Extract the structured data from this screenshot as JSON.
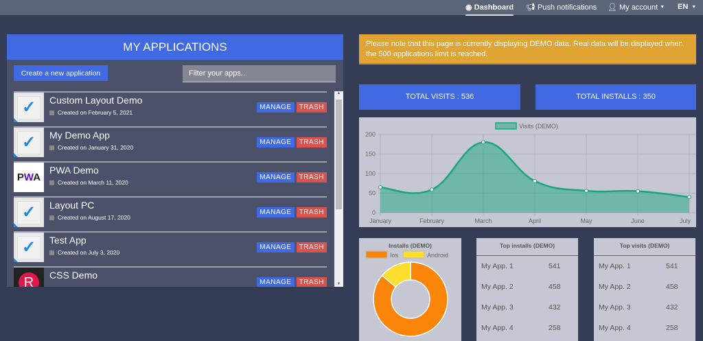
{
  "nav": {
    "dashboard": "Dashboard",
    "push": "Push notifications",
    "account": "My account",
    "lang": "EN"
  },
  "panel": {
    "title": "MY APPLICATIONS",
    "create": "Create a new application",
    "filter_placeholder": "Filter your apps...",
    "manage": "MANAGE",
    "trash": "TRASH",
    "apps": [
      {
        "name": "Custom Layout Demo",
        "date": "Created on February 5, 2021",
        "icon": "check"
      },
      {
        "name": "My Demo App",
        "date": "Created on January 31, 2020",
        "icon": "check"
      },
      {
        "name": "PWA Demo",
        "date": "Created on March 11, 2020",
        "icon": "pwa"
      },
      {
        "name": "Layout PC",
        "date": "Created on August 17, 2020",
        "icon": "check"
      },
      {
        "name": "Test App",
        "date": "Created on July 3, 2020",
        "icon": "check"
      },
      {
        "name": "CSS Demo",
        "date": "",
        "icon": "r-logo"
      }
    ],
    "pwa_logo": "PWA",
    "r_logo": "R"
  },
  "notice": "Please note that this page is currently displaying DEMO data. Real data will be displayed when the 500 applications limit is reached.",
  "stats": {
    "visits": "TOTAL VISITS : 536",
    "installs": "TOTAL INSTALLS : 350"
  },
  "colors": {
    "accent": "#4169e1",
    "trash": "#d9534f",
    "notice": "#e0a434",
    "line": "#1aa57f",
    "ios": "#fb8509",
    "android": "#fddd2e"
  },
  "chart_data": [
    {
      "type": "area",
      "legend": "Visits (DEMO)",
      "categories": [
        "January",
        "February",
        "March",
        "April",
        "May",
        "June",
        "July"
      ],
      "values": [
        65,
        59,
        180,
        81,
        56,
        55,
        40
      ],
      "ylim": [
        0,
        200
      ],
      "yticks": [
        "0",
        "50",
        "100",
        "150",
        "200"
      ],
      "grid": true,
      "legend_position": "top"
    },
    {
      "type": "pie",
      "title": "Installs (DEMO)",
      "labels": [
        "Ios",
        "Android"
      ],
      "values": [
        86,
        14
      ],
      "legend_position": "top"
    }
  ],
  "top_installs": {
    "title": "Top installs (DEMO)",
    "rows": [
      [
        "My App. 1",
        "541"
      ],
      [
        "My App. 2",
        "458"
      ],
      [
        "My App. 3",
        "432"
      ],
      [
        "My App. 4",
        "258"
      ]
    ]
  },
  "top_visits": {
    "title": "Top visits (DEMO)",
    "rows": [
      [
        "My App. 1",
        "541"
      ],
      [
        "My App. 2",
        "458"
      ],
      [
        "My App. 3",
        "432"
      ],
      [
        "My App. 4",
        "258"
      ]
    ]
  }
}
